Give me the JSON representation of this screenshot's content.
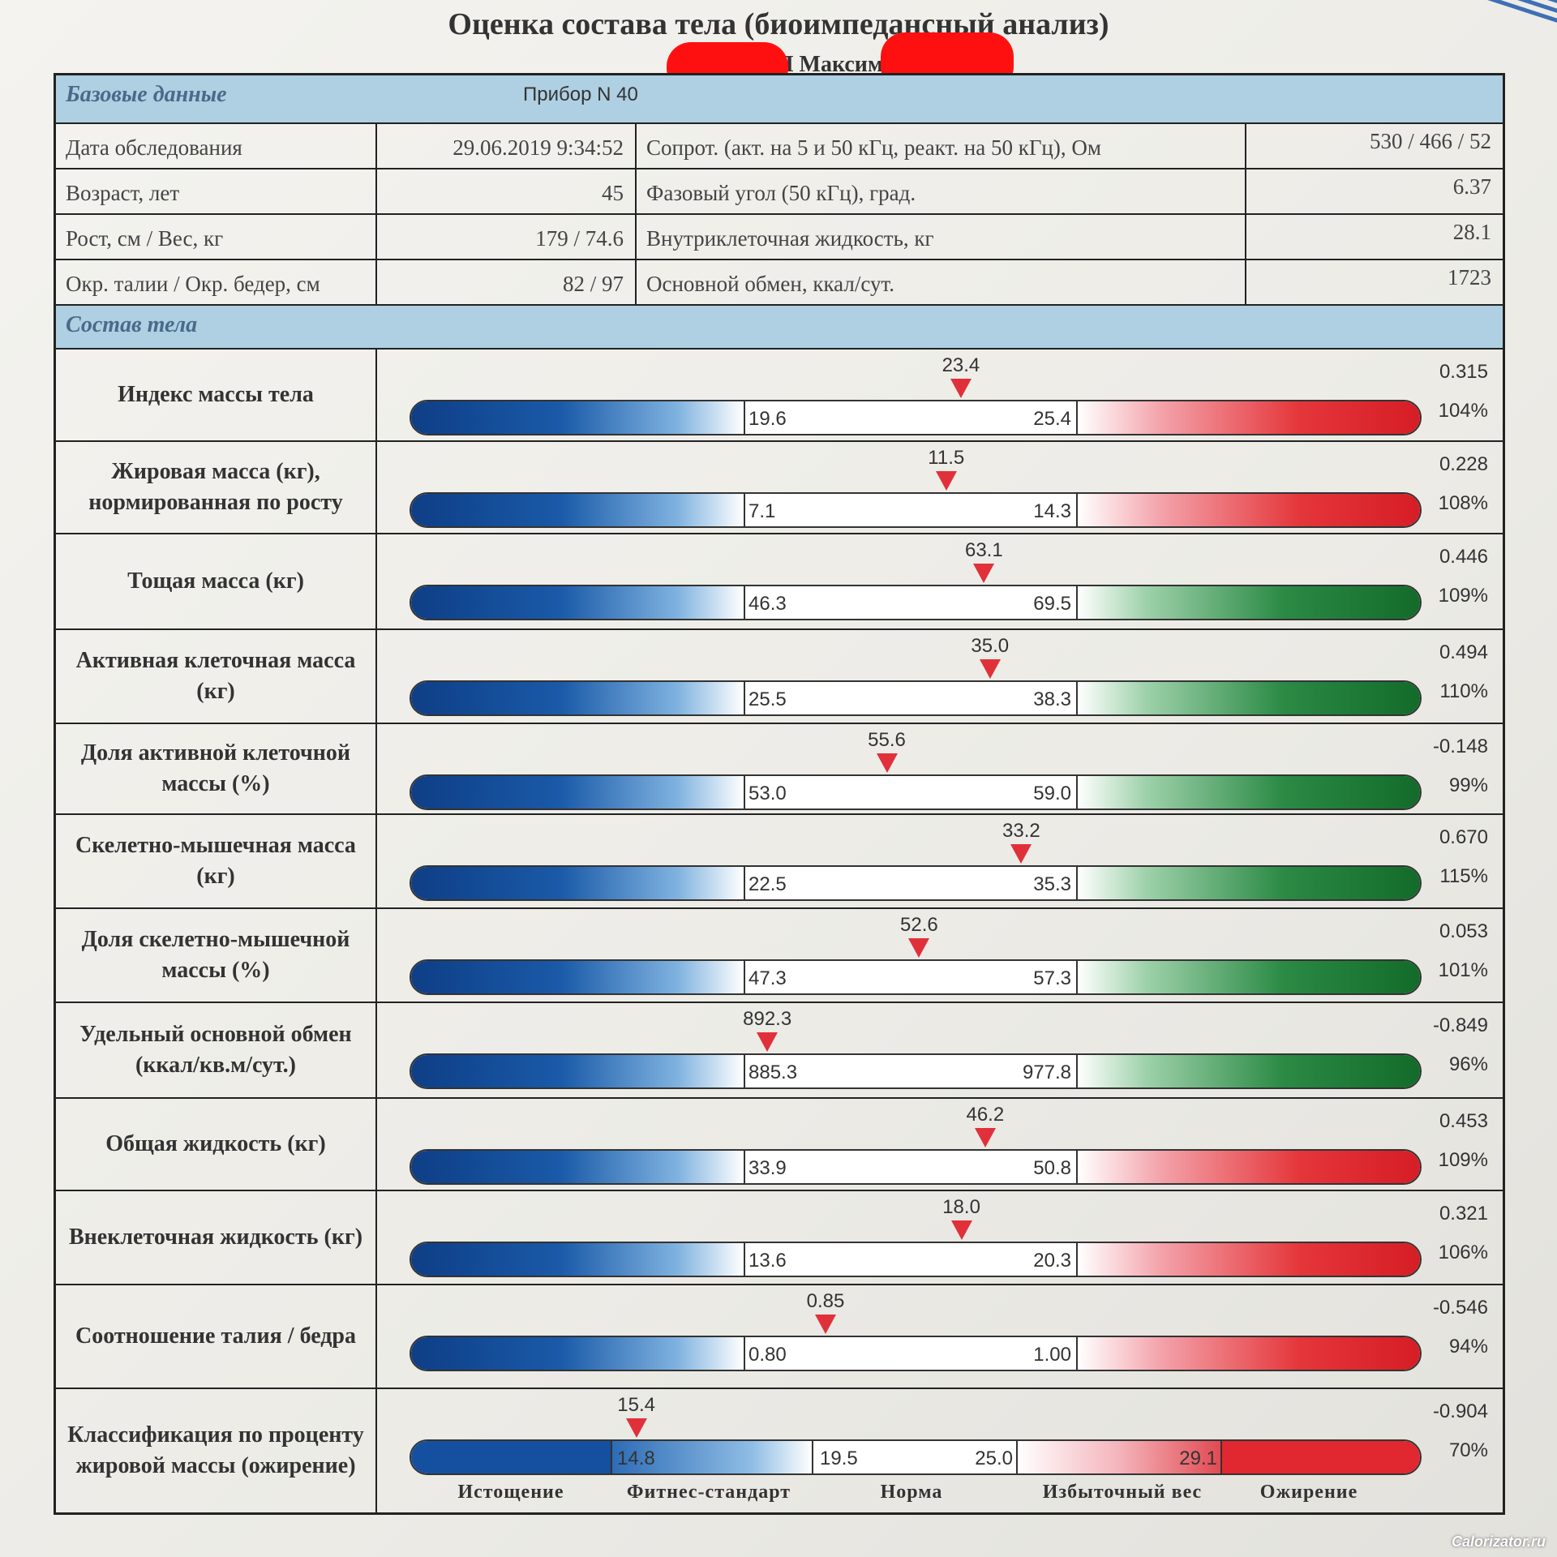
{
  "title": "Оценка состава тела (биоимпедансный анализ)",
  "patient_line": "Пациент: Л          Максим",
  "colors": {
    "header_bg": "#aed0e2",
    "marker": "#e0313a",
    "low": "#0e3e86",
    "high_bad": "#d61d26",
    "high_good": "#136b2a"
  },
  "base": {
    "label": "Базовые данные",
    "device": "Прибор N 40",
    "rows": [
      {
        "l1": "Дата обследования",
        "v1": "29.06.2019 9:34:52",
        "l2": "Сопрот. (акт. на 5 и 50 кГц, реакт. на 50 кГц), Ом",
        "v2": "530 / 466 / 52"
      },
      {
        "l1": "Возраст, лет",
        "v1": "45",
        "l2": "Фазовый угол (50 кГц), град.",
        "v2": "6.37"
      },
      {
        "l1": "Рост, см / Вес, кг",
        "v1": "179 / 74.6",
        "l2": "Внутриклеточная жидкость, кг",
        "v2": "28.1"
      },
      {
        "l1": "Окр. талии / Окр. бедер, см",
        "v1": "82 / 97",
        "l2": "Основной обмен, ккал/сут.",
        "v2": "1723"
      }
    ]
  },
  "composition": {
    "label": "Состав тела",
    "rows": [
      {
        "name": "Индекс массы тела",
        "value": "23.4",
        "value_num": 23.4,
        "low": "19.6",
        "high": "25.4",
        "low_num": 19.6,
        "high_num": 25.4,
        "high_color": "red",
        "z": "0.315",
        "pct": "104%"
      },
      {
        "name": "Жировая масса (кг), нормированная по росту",
        "value": "11.5",
        "value_num": 11.5,
        "low": "7.1",
        "high": "14.3",
        "low_num": 7.1,
        "high_num": 14.3,
        "high_color": "red",
        "z": "0.228",
        "pct": "108%"
      },
      {
        "name": "Тощая масса (кг)",
        "value": "63.1",
        "value_num": 63.1,
        "low": "46.3",
        "high": "69.5",
        "low_num": 46.3,
        "high_num": 69.5,
        "high_color": "green",
        "z": "0.446",
        "pct": "109%"
      },
      {
        "name": "Активная клеточная масса (кг)",
        "value": "35.0",
        "value_num": 35.0,
        "low": "25.5",
        "high": "38.3",
        "low_num": 25.5,
        "high_num": 38.3,
        "high_color": "green",
        "z": "0.494",
        "pct": "110%"
      },
      {
        "name": "Доля активной клеточной массы (%)",
        "value": "55.6",
        "value_num": 55.6,
        "low": "53.0",
        "high": "59.0",
        "low_num": 53.0,
        "high_num": 59.0,
        "high_color": "green",
        "z": "-0.148",
        "pct": "99%"
      },
      {
        "name": "Скелетно-мышечная масса (кг)",
        "value": "33.2",
        "value_num": 33.2,
        "low": "22.5",
        "high": "35.3",
        "low_num": 22.5,
        "high_num": 35.3,
        "high_color": "green",
        "z": "0.670",
        "pct": "115%"
      },
      {
        "name": "Доля скелетно-мышечной массы (%)",
        "value": "52.6",
        "value_num": 52.6,
        "low": "47.3",
        "high": "57.3",
        "low_num": 47.3,
        "high_num": 57.3,
        "high_color": "green",
        "z": "0.053",
        "pct": "101%"
      },
      {
        "name": "Удельный основной обмен (ккал/кв.м/сут.)",
        "value": "892.3",
        "value_num": 892.3,
        "low": "885.3",
        "high": "977.8",
        "low_num": 885.3,
        "high_num": 977.8,
        "high_color": "green",
        "z": "-0.849",
        "pct": "96%"
      },
      {
        "name": "Общая жидкость (кг)",
        "value": "46.2",
        "value_num": 46.2,
        "low": "33.9",
        "high": "50.8",
        "low_num": 33.9,
        "high_num": 50.8,
        "high_color": "red",
        "z": "0.453",
        "pct": "109%"
      },
      {
        "name": "Внеклеточная жидкость (кг)",
        "value": "18.0",
        "value_num": 18.0,
        "low": "13.6",
        "high": "20.3",
        "low_num": 13.6,
        "high_num": 20.3,
        "high_color": "red",
        "z": "0.321",
        "pct": "106%"
      },
      {
        "name": "Соотношение талия / бедра",
        "value": "0.85",
        "value_num": 0.85,
        "low": "0.80",
        "high": "1.00",
        "low_num": 0.8,
        "high_num": 1.0,
        "high_color": "red",
        "z": "-0.546",
        "pct": "94%"
      }
    ],
    "classification": {
      "name": "Классификация по проценту жировой массы (ожирение)",
      "value": "15.4",
      "value_num": 15.4,
      "ticks": [
        "14.8",
        "19.5",
        "25.0",
        "29.1"
      ],
      "tick_nums": [
        14.8,
        19.5,
        25.0,
        29.1
      ],
      "categories": [
        "Истощение",
        "Фитнес-стандарт",
        "Норма",
        "Избыточный вес",
        "Ожирение"
      ],
      "z": "-0.904",
      "pct": "70%"
    }
  },
  "watermark": "Calorizator.ru"
}
